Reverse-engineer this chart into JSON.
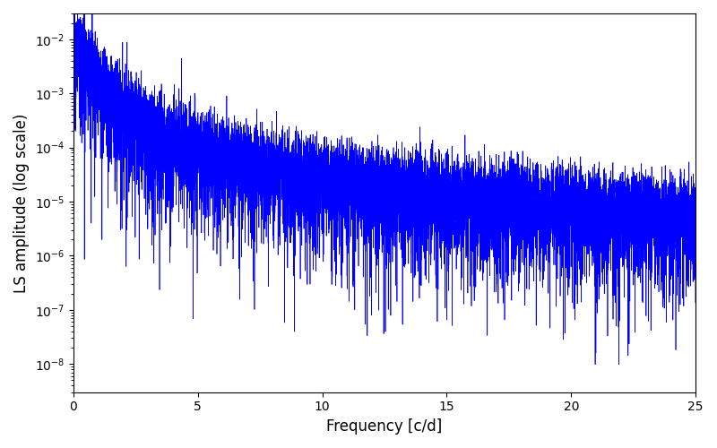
{
  "title": "",
  "xlabel": "Frequency [c/d]",
  "ylabel": "LS amplitude (log scale)",
  "line_color": "#0000ff",
  "line_width": 0.5,
  "xlim": [
    0,
    25
  ],
  "ylim": [
    3e-09,
    0.03
  ],
  "freq_min": 0.0,
  "freq_max": 25.0,
  "num_points": 10000,
  "seed": 12345,
  "background_color": "#ffffff",
  "figsize": [
    8.0,
    5.0
  ],
  "dpi": 100
}
